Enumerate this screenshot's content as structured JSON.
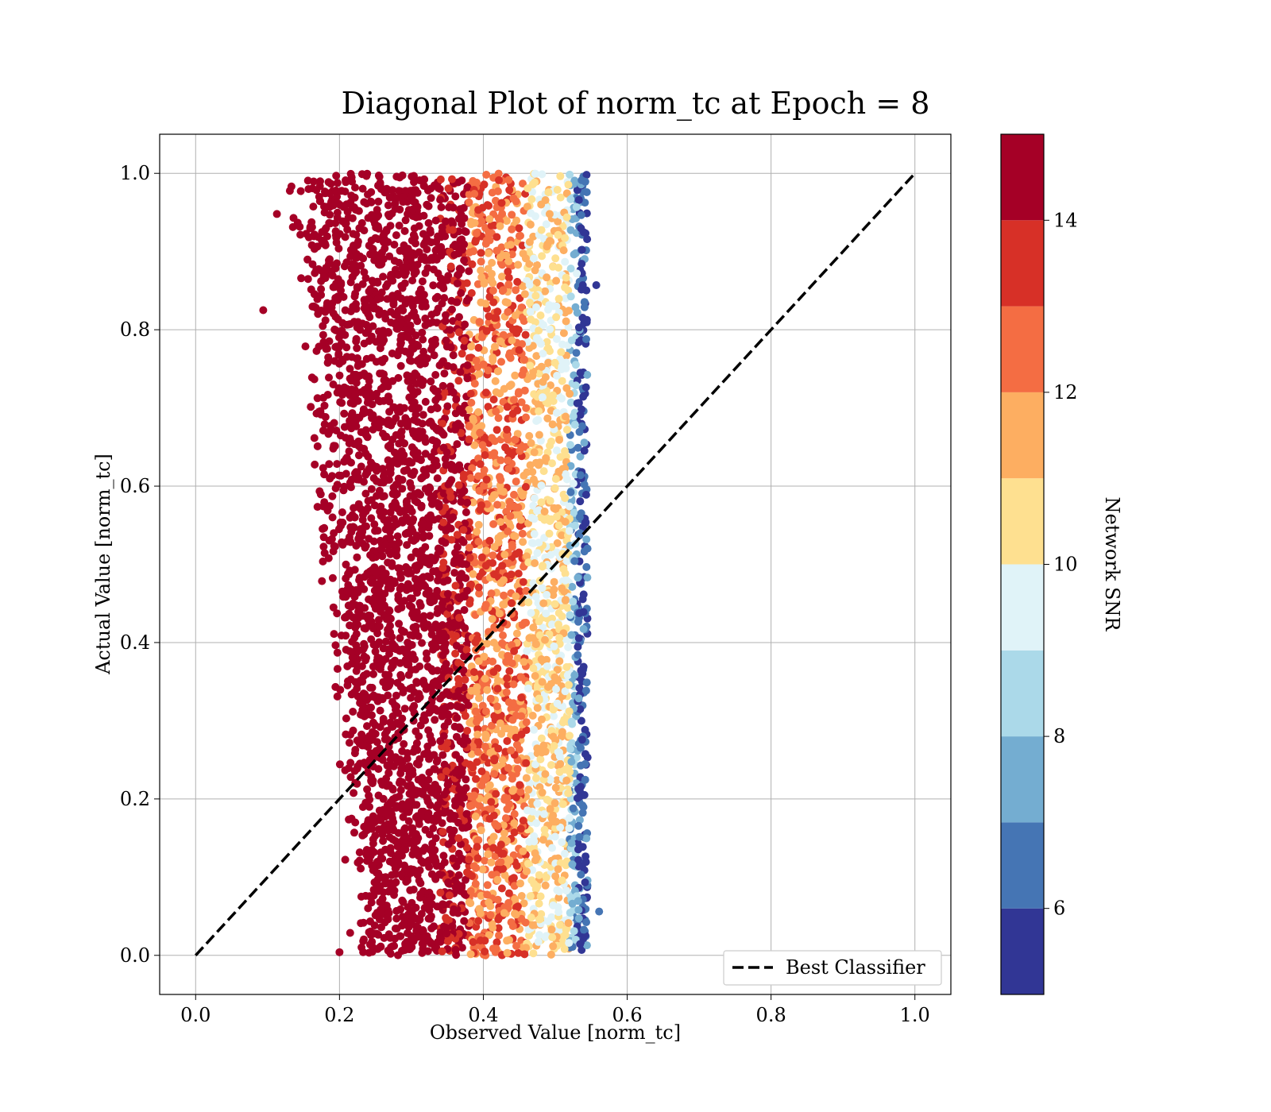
{
  "chart_data": {
    "type": "scatter",
    "title": "Diagonal Plot of norm_tc at Epoch = 8",
    "xlabel": "Observed Value [norm_tc]",
    "ylabel": "Actual Value [norm_tc]",
    "xlim": [
      -0.05,
      1.05
    ],
    "ylim": [
      -0.05,
      1.05
    ],
    "x_ticks": [
      0.0,
      0.2,
      0.4,
      0.6,
      0.8,
      1.0
    ],
    "y_ticks": [
      0.0,
      0.2,
      0.4,
      0.6,
      0.8,
      1.0
    ],
    "x_tick_labels": [
      "0.0",
      "0.2",
      "0.4",
      "0.6",
      "0.8",
      "1.0"
    ],
    "y_tick_labels": [
      "0.0",
      "0.2",
      "0.4",
      "0.6",
      "0.8",
      "1.0"
    ],
    "grid": true,
    "legend": {
      "placement": "lower-right",
      "entries": [
        "Best Classifier"
      ]
    },
    "reference_line": {
      "name": "Best Classifier",
      "style": "dashed",
      "color": "#000000",
      "x": [
        0.0,
        1.0
      ],
      "y": [
        0.0,
        1.0
      ]
    },
    "points_summary": {
      "count_estimate": "dense (tens of thousands)",
      "x_range": [
        0.1,
        0.56
      ],
      "y_range": [
        0.0,
        1.0
      ],
      "relationship": "Observed value roughly constant in 0.15-0.55 regardless of actual value; high SNR points concentrated near x 0.2-0.38, low SNR points near x 0.5-0.55",
      "snr_bands_by_x": [
        {
          "x_from": 0.12,
          "x_to": 0.38,
          "dominant_snr": 14.5
        },
        {
          "x_from": 0.38,
          "x_to": 0.46,
          "dominant_snr": 12.5
        },
        {
          "x_from": 0.46,
          "x_to": 0.52,
          "dominant_snr": 10.5
        },
        {
          "x_from": 0.52,
          "x_to": 0.55,
          "dominant_snr": 8.0
        },
        {
          "x_from": 0.53,
          "x_to": 0.56,
          "dominant_snr": 6.0
        }
      ],
      "outliers": [
        {
          "x": 0.094,
          "y": 0.825,
          "snr": 14.5
        },
        {
          "x": 0.113,
          "y": 0.948,
          "snr": 14.5
        },
        {
          "x": 0.2,
          "y": 0.004,
          "snr": 14.5
        },
        {
          "x": 0.561,
          "y": 0.056,
          "snr": 6.5
        },
        {
          "x": 0.557,
          "y": 0.857,
          "snr": 5.5
        }
      ]
    },
    "colorbar": {
      "label": "Network SNR",
      "range": [
        5,
        15
      ],
      "ticks": [
        6,
        8,
        10,
        12,
        14
      ],
      "tick_labels": [
        "6",
        "8",
        "10",
        "12",
        "14"
      ],
      "boundaries": [
        5,
        6,
        7,
        8,
        9,
        10,
        11,
        12,
        13,
        14,
        15
      ],
      "colors": [
        "#313695",
        "#4575b4",
        "#74add1",
        "#abd9e9",
        "#e0f3f8",
        "#fee090",
        "#fdae61",
        "#f46d43",
        "#d73027",
        "#a50026"
      ]
    }
  }
}
